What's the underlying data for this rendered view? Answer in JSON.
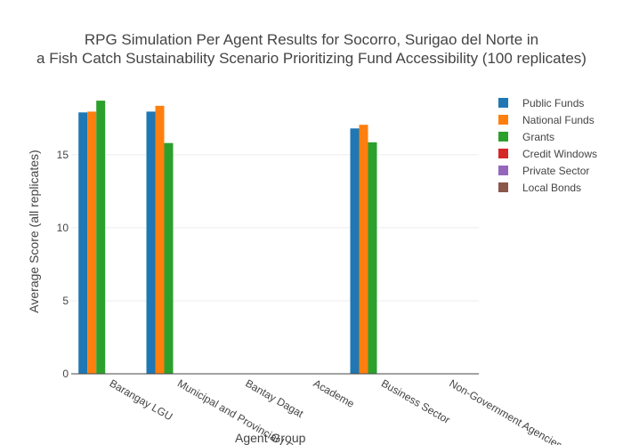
{
  "chart_data": {
    "type": "bar",
    "title_lines": [
      "RPG Simulation Per Agent Results for Socorro, Surigao del Norte in",
      "a Fish Catch Sustainability Scenario Prioritizing Fund Accessibility (100 replicates)"
    ],
    "xlabel": "Agent Group",
    "ylabel": "Average Score (all replicates)",
    "ylim": [
      0,
      19.5
    ],
    "yticks": [
      0,
      5,
      10,
      15
    ],
    "grid": true,
    "legend_position": "right",
    "categories": [
      "Barangay LGU",
      "Municipal and Provincial LGU",
      "Bantay Dagat",
      "Academe",
      "Business Sector",
      "Non-Government Agencies"
    ],
    "series": [
      {
        "name": "Public Funds",
        "color": "#1f77b4",
        "values": [
          17.9,
          17.95,
          0,
          0,
          16.8,
          0
        ]
      },
      {
        "name": "National Funds",
        "color": "#ff7f0e",
        "values": [
          17.95,
          18.35,
          0,
          0,
          17.05,
          0
        ]
      },
      {
        "name": "Grants",
        "color": "#2ca02c",
        "values": [
          18.7,
          15.8,
          0,
          0,
          15.85,
          0
        ]
      },
      {
        "name": "Credit Windows",
        "color": "#d62728",
        "values": [
          0,
          0,
          0,
          0,
          0,
          0
        ]
      },
      {
        "name": "Private Sector",
        "color": "#9467bd",
        "values": [
          0,
          0,
          0,
          0,
          0,
          0
        ]
      },
      {
        "name": "Local Bonds",
        "color": "#8c564b",
        "values": [
          0,
          0,
          0,
          0,
          0,
          0
        ]
      }
    ]
  }
}
